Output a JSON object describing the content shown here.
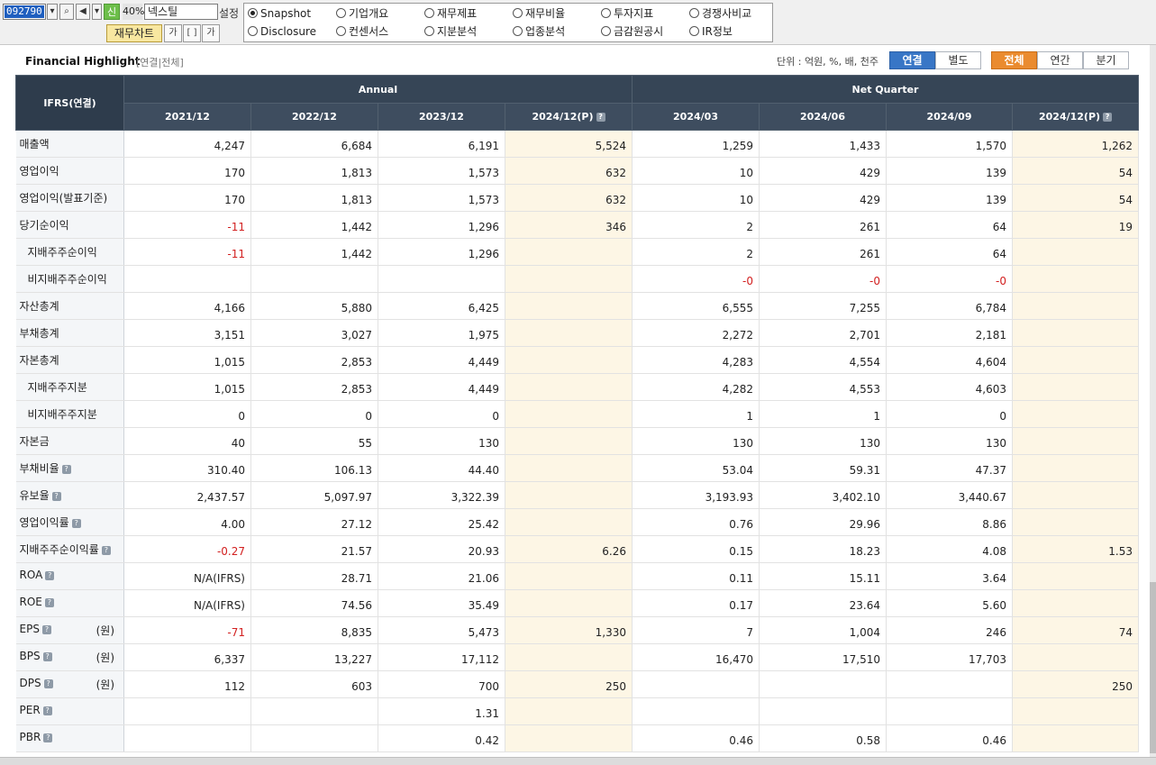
{
  "toolbar": {
    "stock_code": "092790",
    "zoom": "40%",
    "stock_name": "넥스틸",
    "setting_label": "설정",
    "new_label": "신",
    "chart_button": "재무차트",
    "font_button": "가",
    "expand_button": "[ ]",
    "font_small_button": "가"
  },
  "menu": {
    "row1": [
      "Snapshot",
      "기업개요",
      "재무제표",
      "재무비율",
      "투자지표",
      "경쟁사비교"
    ],
    "row2": [
      "Disclosure",
      "컨센서스",
      "지분분석",
      "업종분석",
      "금감원공시",
      "IR정보"
    ],
    "selected": "Snapshot"
  },
  "header": {
    "title": "Financial Highlight",
    "subtitle": "[연결|전체]",
    "unit": "단위 : 억원, %, 배, 천주",
    "basis_tabs": [
      "연결",
      "별도"
    ],
    "basis_selected": "연결",
    "period_tabs": [
      "전체",
      "연간",
      "분기"
    ],
    "period_selected": "전체"
  },
  "table": {
    "corner": "IFRS(연결)",
    "group_annual": "Annual",
    "group_quarter": "Net Quarter",
    "columns": [
      "2021/12",
      "2022/12",
      "2023/12",
      "2024/12(P)",
      "2024/03",
      "2024/06",
      "2024/09",
      "2024/12(P)"
    ],
    "rows": [
      {
        "label": "매출액",
        "values": [
          "4,247",
          "6,684",
          "6,191",
          "5,524",
          "1,259",
          "1,433",
          "1,570",
          "1,262"
        ]
      },
      {
        "label": "영업이익",
        "values": [
          "170",
          "1,813",
          "1,573",
          "632",
          "10",
          "429",
          "139",
          "54"
        ]
      },
      {
        "label": "영업이익(발표기준)",
        "values": [
          "170",
          "1,813",
          "1,573",
          "632",
          "10",
          "429",
          "139",
          "54"
        ]
      },
      {
        "label": "당기순이익",
        "values": [
          "-11",
          "1,442",
          "1,296",
          "346",
          "2",
          "261",
          "64",
          "19"
        ]
      },
      {
        "label": "지배주주순이익",
        "values": [
          "-11",
          "1,442",
          "1,296",
          "",
          "2",
          "261",
          "64",
          ""
        ]
      },
      {
        "label": "비지배주주순이익",
        "values": [
          "",
          "",
          "",
          "",
          "-0",
          "-0",
          "-0",
          ""
        ]
      },
      {
        "label": "자산총계",
        "values": [
          "4,166",
          "5,880",
          "6,425",
          "",
          "6,555",
          "7,255",
          "6,784",
          ""
        ]
      },
      {
        "label": "부채총계",
        "values": [
          "3,151",
          "3,027",
          "1,975",
          "",
          "2,272",
          "2,701",
          "2,181",
          ""
        ]
      },
      {
        "label": "자본총계",
        "values": [
          "1,015",
          "2,853",
          "4,449",
          "",
          "4,283",
          "4,554",
          "4,604",
          ""
        ]
      },
      {
        "label": "지배주주지분",
        "values": [
          "1,015",
          "2,853",
          "4,449",
          "",
          "4,282",
          "4,553",
          "4,603",
          ""
        ]
      },
      {
        "label": "비지배주주지분",
        "values": [
          "0",
          "0",
          "0",
          "",
          "1",
          "1",
          "0",
          ""
        ]
      },
      {
        "label": "자본금",
        "values": [
          "40",
          "55",
          "130",
          "",
          "130",
          "130",
          "130",
          ""
        ]
      },
      {
        "label": "부채비율",
        "values": [
          "310.40",
          "106.13",
          "44.40",
          "",
          "53.04",
          "59.31",
          "47.37",
          ""
        ]
      },
      {
        "label": "유보율",
        "values": [
          "2,437.57",
          "5,097.97",
          "3,322.39",
          "",
          "3,193.93",
          "3,402.10",
          "3,440.67",
          ""
        ]
      },
      {
        "label": "영업이익률",
        "values": [
          "4.00",
          "27.12",
          "25.42",
          "",
          "0.76",
          "29.96",
          "8.86",
          ""
        ]
      },
      {
        "label": "지배주주순이익률",
        "values": [
          "-0.27",
          "21.57",
          "20.93",
          "6.26",
          "0.15",
          "18.23",
          "4.08",
          "1.53"
        ]
      },
      {
        "label": "ROA",
        "values": [
          "N/A(IFRS)",
          "28.71",
          "21.06",
          "",
          "0.11",
          "15.11",
          "3.64",
          ""
        ]
      },
      {
        "label": "ROE",
        "values": [
          "N/A(IFRS)",
          "74.56",
          "35.49",
          "",
          "0.17",
          "23.64",
          "5.60",
          ""
        ]
      },
      {
        "label": "EPS",
        "unit": "(원)",
        "values": [
          "-71",
          "8,835",
          "5,473",
          "1,330",
          "7",
          "1,004",
          "246",
          "74"
        ]
      },
      {
        "label": "BPS",
        "unit": "(원)",
        "values": [
          "6,337",
          "13,227",
          "17,112",
          "",
          "16,470",
          "17,510",
          "17,703",
          ""
        ]
      },
      {
        "label": "DPS",
        "unit": "(원)",
        "values": [
          "112",
          "603",
          "700",
          "250",
          "",
          "",
          "",
          "250"
        ]
      },
      {
        "label": "PER",
        "values": [
          "",
          "",
          "1.31",
          "",
          "",
          "",
          "",
          ""
        ]
      },
      {
        "label": "PBR",
        "values": [
          "",
          "",
          "0.42",
          "",
          "0.46",
          "0.58",
          "0.46",
          ""
        ]
      }
    ]
  }
}
